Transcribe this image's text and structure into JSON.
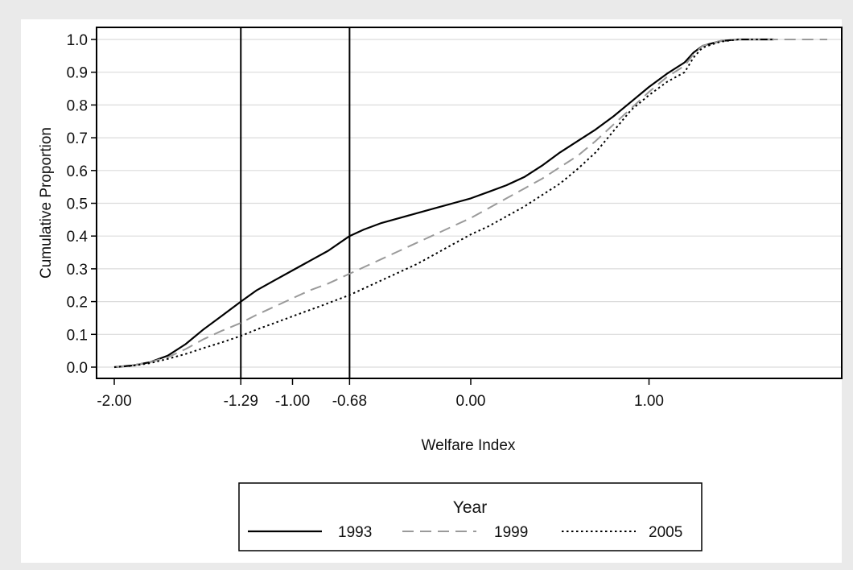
{
  "chart_data": {
    "type": "line",
    "title": "",
    "xlabel": "Welfare Index",
    "ylabel": "Cumulative Proportion",
    "xlim": [
      -2.0,
      2.0
    ],
    "ylim": [
      0.0,
      1.0
    ],
    "x_ticks": [
      -2.0,
      -1.29,
      -1.0,
      -0.68,
      0.0,
      1.0
    ],
    "x_tick_labels": [
      "-2.00",
      "-1.29",
      "-1.00",
      "-0.68",
      "0.00",
      "1.00"
    ],
    "y_ticks": [
      0.0,
      0.1,
      0.2,
      0.3,
      0.4,
      0.5,
      0.6,
      0.7,
      0.8,
      0.9,
      1.0
    ],
    "y_tick_labels": [
      "0.0",
      "0.1",
      "0.2",
      "0.3",
      "0.4",
      "0.5",
      "0.6",
      "0.7",
      "0.8",
      "0.9",
      "1.0"
    ],
    "vertical_reference_lines": [
      -1.29,
      -0.68
    ],
    "grid": true,
    "legend": {
      "title": "Year",
      "placement": "bottom"
    },
    "series": [
      {
        "name": "1993",
        "style": "solid",
        "color": "#000000",
        "x": [
          -2.0,
          -1.9,
          -1.8,
          -1.7,
          -1.6,
          -1.5,
          -1.4,
          -1.29,
          -1.2,
          -1.1,
          -1.0,
          -0.9,
          -0.8,
          -0.68,
          -0.6,
          -0.5,
          -0.4,
          -0.3,
          -0.2,
          -0.1,
          0.0,
          0.1,
          0.2,
          0.3,
          0.4,
          0.5,
          0.6,
          0.7,
          0.8,
          0.9,
          1.0,
          1.1,
          1.2,
          1.25,
          1.3,
          1.4,
          1.5,
          1.6,
          1.7
        ],
        "y": [
          0.0,
          0.005,
          0.015,
          0.035,
          0.07,
          0.115,
          0.155,
          0.2,
          0.235,
          0.265,
          0.295,
          0.325,
          0.355,
          0.4,
          0.42,
          0.44,
          0.455,
          0.47,
          0.485,
          0.5,
          0.515,
          0.535,
          0.555,
          0.58,
          0.615,
          0.655,
          0.69,
          0.725,
          0.765,
          0.81,
          0.855,
          0.895,
          0.93,
          0.96,
          0.98,
          0.995,
          1.0,
          1.0,
          1.0
        ]
      },
      {
        "name": "1999",
        "style": "dashed",
        "color": "#9a9a9a",
        "x": [
          -2.0,
          -1.9,
          -1.8,
          -1.7,
          -1.6,
          -1.5,
          -1.4,
          -1.29,
          -1.2,
          -1.1,
          -1.0,
          -0.9,
          -0.8,
          -0.68,
          -0.6,
          -0.5,
          -0.4,
          -0.3,
          -0.2,
          -0.1,
          0.0,
          0.1,
          0.2,
          0.3,
          0.4,
          0.5,
          0.6,
          0.7,
          0.8,
          0.9,
          1.0,
          1.1,
          1.2,
          1.25,
          1.3,
          1.4,
          1.5,
          1.6,
          1.7,
          1.8,
          1.9,
          2.0
        ],
        "y": [
          0.0,
          0.005,
          0.015,
          0.03,
          0.055,
          0.085,
          0.11,
          0.135,
          0.16,
          0.185,
          0.21,
          0.235,
          0.255,
          0.285,
          0.305,
          0.33,
          0.355,
          0.38,
          0.405,
          0.43,
          0.455,
          0.485,
          0.515,
          0.545,
          0.575,
          0.61,
          0.645,
          0.69,
          0.74,
          0.79,
          0.84,
          0.885,
          0.92,
          0.955,
          0.98,
          0.995,
          1.0,
          1.0,
          1.0,
          1.0,
          1.0,
          1.0
        ]
      },
      {
        "name": "2005",
        "style": "dotted",
        "color": "#000000",
        "x": [
          -2.0,
          -1.9,
          -1.8,
          -1.7,
          -1.6,
          -1.5,
          -1.4,
          -1.29,
          -1.2,
          -1.1,
          -1.0,
          -0.9,
          -0.8,
          -0.68,
          -0.6,
          -0.5,
          -0.4,
          -0.3,
          -0.2,
          -0.1,
          0.0,
          0.1,
          0.2,
          0.3,
          0.4,
          0.5,
          0.6,
          0.7,
          0.8,
          0.9,
          1.0,
          1.1,
          1.2,
          1.25,
          1.3,
          1.4,
          1.5,
          1.6,
          1.7
        ],
        "y": [
          0.0,
          0.004,
          0.012,
          0.025,
          0.04,
          0.058,
          0.075,
          0.095,
          0.115,
          0.135,
          0.155,
          0.175,
          0.195,
          0.22,
          0.24,
          0.265,
          0.29,
          0.315,
          0.345,
          0.375,
          0.405,
          0.43,
          0.46,
          0.49,
          0.525,
          0.56,
          0.605,
          0.655,
          0.72,
          0.785,
          0.83,
          0.87,
          0.9,
          0.945,
          0.975,
          0.993,
          1.0,
          1.0,
          1.0
        ]
      }
    ]
  }
}
